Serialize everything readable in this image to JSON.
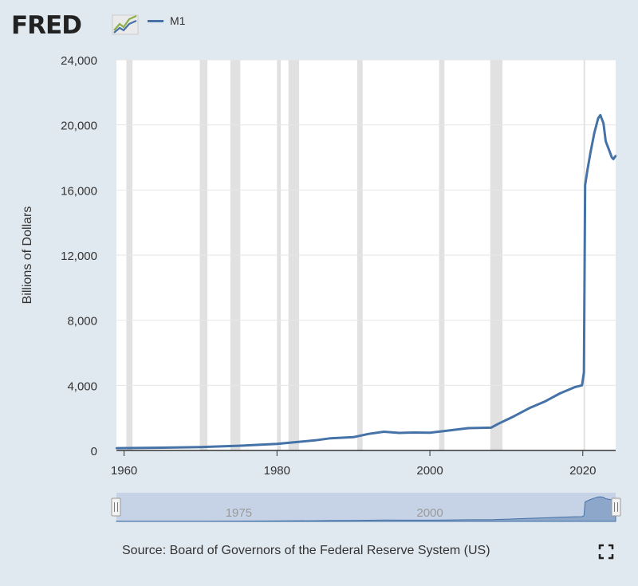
{
  "header": {
    "logo_text": "FRED",
    "logo_icon": "line-chart-icon"
  },
  "legend": {
    "label": "M1",
    "color": "#4572a7"
  },
  "chart_data": {
    "type": "line",
    "title": "",
    "xlabel": "",
    "ylabel": "Billions of Dollars",
    "xlim": [
      1959,
      2024.3
    ],
    "ylim": [
      0,
      24000
    ],
    "y_ticks": [
      0,
      4000,
      8000,
      12000,
      16000,
      20000,
      24000
    ],
    "y_tick_labels": [
      "0",
      "4,000",
      "8,000",
      "12,000",
      "16,000",
      "20,000",
      "24,000"
    ],
    "x_ticks": [
      1960,
      1980,
      2000,
      2020
    ],
    "x_tick_labels": [
      "1960",
      "1980",
      "2000",
      "2020"
    ],
    "grid": true,
    "recession_shading": [
      [
        1960.3,
        1961.1
      ],
      [
        1969.9,
        1970.9
      ],
      [
        1973.9,
        1975.2
      ],
      [
        1980.0,
        1980.5
      ],
      [
        1981.5,
        1982.9
      ],
      [
        1990.5,
        1991.2
      ],
      [
        2001.2,
        2001.9
      ],
      [
        2007.9,
        2009.5
      ],
      [
        2020.1,
        2020.3
      ]
    ],
    "recession_color": "#e1e1e1",
    "series": [
      {
        "name": "M1",
        "color": "#4572a7",
        "x": [
          1959,
          1965,
          1970,
          1975,
          1980,
          1985,
          1987,
          1990,
          1992,
          1994,
          1996,
          1998,
          2000,
          2002,
          2005,
          2008,
          2009,
          2011,
          2013,
          2015,
          2017,
          2019,
          2019.9,
          2020.15,
          2020.3,
          2020.6,
          2021.0,
          2021.5,
          2022.0,
          2022.3,
          2022.7,
          2023.0,
          2023.4,
          2023.8,
          2024.0,
          2024.3
        ],
        "values": [
          140,
          170,
          210,
          290,
          400,
          620,
          750,
          820,
          1020,
          1150,
          1080,
          1100,
          1090,
          1200,
          1370,
          1400,
          1650,
          2100,
          2600,
          3000,
          3500,
          3900,
          4000,
          4800,
          16300,
          17200,
          18300,
          19500,
          20400,
          20600,
          20100,
          19000,
          18500,
          18000,
          17900,
          18100
        ]
      }
    ]
  },
  "navigator": {
    "tick_labels": [
      "1975",
      "2000"
    ],
    "tick_years": [
      1975,
      2000
    ],
    "handle_left_icon": "drag-handle-icon",
    "handle_right_icon": "drag-handle-icon"
  },
  "footer": {
    "source": "Source: Board of Governors of the Federal Reserve System (US)",
    "fullscreen_icon": "fullscreen-icon"
  }
}
